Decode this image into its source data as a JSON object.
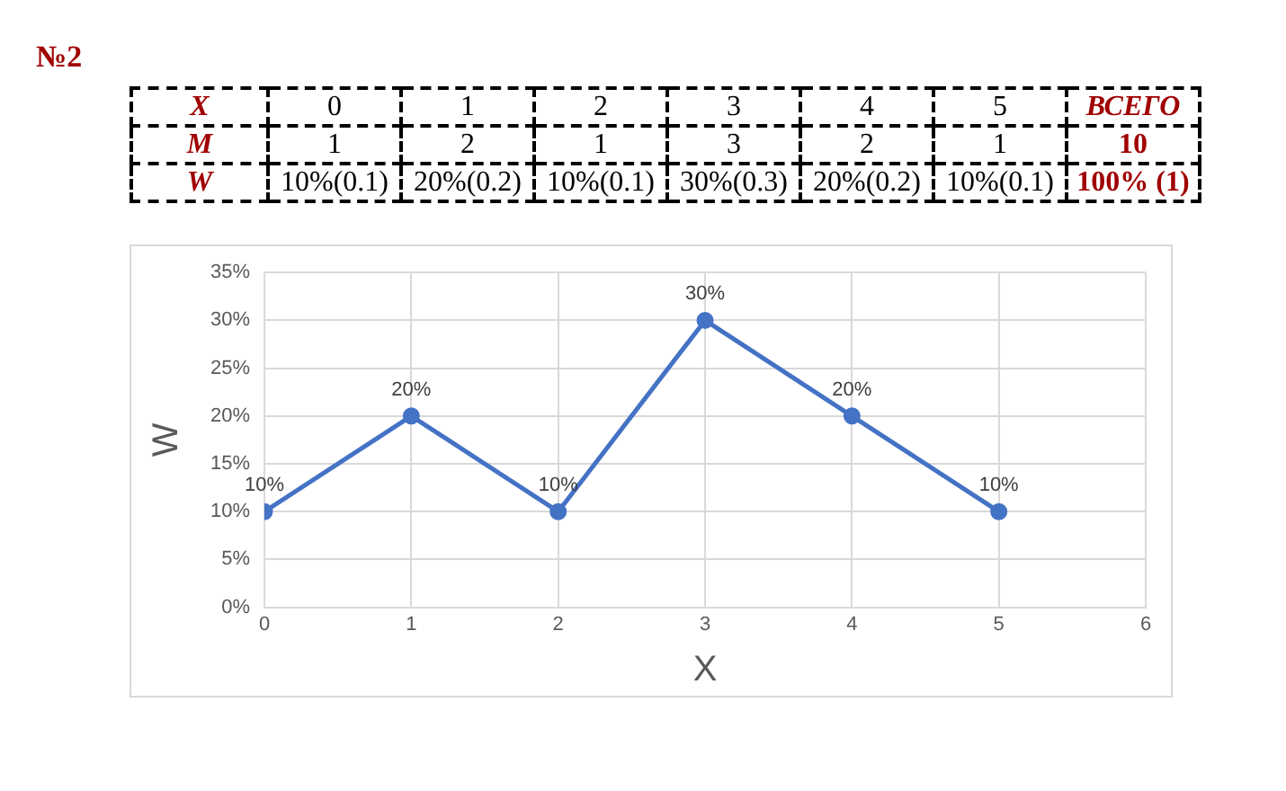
{
  "chart_data": {
    "type": "line",
    "title": "№2",
    "xlabel": "X",
    "ylabel": "W",
    "x": [
      0,
      1,
      2,
      3,
      4,
      5
    ],
    "annotations": [
      "X",
      "0",
      "1",
      "2",
      "3",
      "4",
      "5",
      "ВСЕГО",
      "M",
      "1",
      "2",
      "1",
      "3",
      "2",
      "1",
      "10",
      "W",
      "10%(0.1)",
      "20%(0.2)",
      "10%(0.1)",
      "30%(0.3)",
      "20%(0.2)",
      "10%(0.1)",
      "100% (1)"
    ],
    "series": [
      {
        "color": "#4472c4",
        "values": [
          10,
          20,
          10,
          30,
          20,
          10
        ],
        "value_labels": [
          "10%",
          "20%",
          "10%",
          "30%",
          "20%",
          "10%"
        ]
      }
    ],
    "xlim": [
      0,
      6
    ],
    "xticks": [
      0,
      1,
      2,
      3,
      4,
      5,
      6
    ],
    "ylim": [
      0,
      35
    ],
    "yticks": [
      {
        "value": 0,
        "label": "0%"
      },
      {
        "value": 5,
        "label": "5%"
      },
      {
        "value": 10,
        "label": "10%"
      },
      {
        "value": 15,
        "label": "15%"
      },
      {
        "value": 20,
        "label": "20%"
      },
      {
        "value": 25,
        "label": "25%"
      },
      {
        "value": 30,
        "label": "30%"
      },
      {
        "value": 35,
        "label": "35%"
      }
    ],
    "grid": true,
    "marker": "circle",
    "line_style": "solid"
  }
}
